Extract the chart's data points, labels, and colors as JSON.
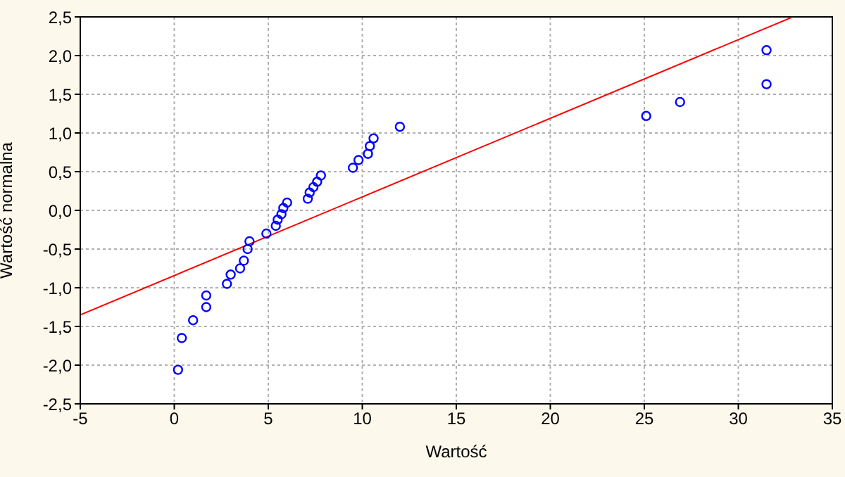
{
  "chart_data": {
    "type": "scatter",
    "xlabel": "Wartość",
    "ylabel": "Wartość normalna",
    "xlim": [
      -5,
      35
    ],
    "xticks": [
      -5,
      0,
      5,
      10,
      15,
      20,
      25,
      30,
      35
    ],
    "ylim": [
      -2.5,
      2.5
    ],
    "yticks": [
      {
        "value": -2.5,
        "label": "-2,5"
      },
      {
        "value": -2,
        "label": "-2,0"
      },
      {
        "value": -1.5,
        "label": "-1,5"
      },
      {
        "value": -1,
        "label": "-1,0"
      },
      {
        "value": -0.5,
        "label": "-0,5"
      },
      {
        "value": 0,
        "label": "0,0"
      },
      {
        "value": 0.5,
        "label": "0,5"
      },
      {
        "value": 1,
        "label": "1,0"
      },
      {
        "value": 1.5,
        "label": "1,5"
      },
      {
        "value": 2,
        "label": "2,0"
      },
      {
        "value": 2.5,
        "label": "2,5"
      }
    ],
    "grid": true,
    "legend": false,
    "series": [
      {
        "type": "scatter",
        "color": "#0000ff",
        "marker": "circle",
        "x": [
          0.2,
          0.4,
          1.0,
          1.7,
          1.7,
          2.8,
          3.0,
          3.5,
          3.7,
          3.9,
          4.0,
          4.9,
          5.4,
          5.5,
          5.7,
          5.8,
          6.0,
          7.1,
          7.2,
          7.4,
          7.6,
          7.8,
          9.5,
          9.8,
          10.3,
          10.4,
          10.6,
          12.0,
          25.1,
          26.9,
          31.5,
          31.5
        ],
        "values": [
          -2.06,
          -1.65,
          -1.42,
          -1.25,
          -1.1,
          -0.95,
          -0.83,
          -0.75,
          -0.65,
          -0.5,
          -0.4,
          -0.3,
          -0.2,
          -0.12,
          -0.05,
          0.03,
          0.1,
          0.15,
          0.23,
          0.3,
          0.37,
          0.45,
          0.55,
          0.65,
          0.73,
          0.83,
          0.93,
          1.08,
          1.22,
          1.4,
          1.63,
          2.07
        ]
      },
      {
        "type": "line",
        "color": "#ff0000",
        "marker": "none",
        "line_style": "solid",
        "x": [
          -5,
          32.9
        ],
        "values": [
          -1.35,
          2.5
        ]
      }
    ]
  }
}
